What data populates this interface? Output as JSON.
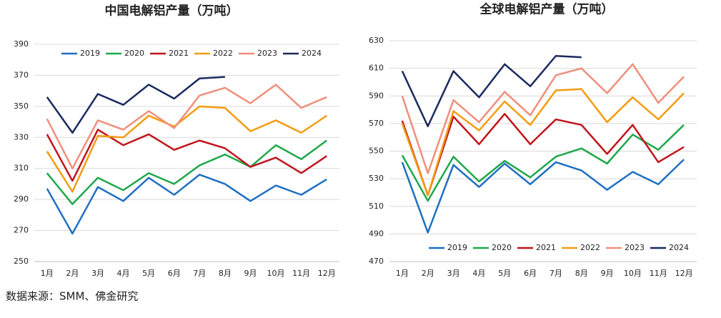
{
  "chart_data": [
    {
      "type": "line",
      "title": "中国电解铝产量（万吨）",
      "categories": [
        "1月",
        "2月",
        "3月",
        "4月",
        "5月",
        "6月",
        "7月",
        "8月",
        "9月",
        "10月",
        "11月",
        "12月"
      ],
      "ylim": [
        250,
        390
      ],
      "yticks": [
        250,
        270,
        290,
        310,
        330,
        350,
        370,
        390
      ],
      "grid": true,
      "legend": "top",
      "series": [
        {
          "name": "2019",
          "color": "#1f6fc1",
          "values": [
            297,
            268,
            298,
            289,
            304,
            293,
            306,
            300,
            289,
            299,
            293,
            303
          ]
        },
        {
          "name": "2020",
          "color": "#1fa84a",
          "values": [
            307,
            287,
            304,
            296,
            307,
            300,
            312,
            319,
            311,
            325,
            316,
            328
          ]
        },
        {
          "name": "2021",
          "color": "#c0141c",
          "values": [
            332,
            302,
            335,
            325,
            332,
            322,
            328,
            323,
            311,
            317,
            307,
            318
          ]
        },
        {
          "name": "2022",
          "color": "#f39c12",
          "values": [
            321,
            295,
            331,
            330,
            344,
            337,
            350,
            349,
            334,
            341,
            333,
            344
          ]
        },
        {
          "name": "2023",
          "color": "#ef8f7b",
          "values": [
            342,
            310,
            341,
            335,
            347,
            336,
            357,
            362,
            352,
            364,
            349,
            356
          ]
        },
        {
          "name": "2024",
          "color": "#1a2a5e",
          "values": [
            356,
            333,
            358,
            351,
            364,
            355,
            368,
            369,
            null,
            null,
            null,
            null
          ]
        }
      ]
    },
    {
      "type": "line",
      "title": "全球电解铝产量（万吨）",
      "categories": [
        "1月",
        "2月",
        "3月",
        "4月",
        "5月",
        "6月",
        "7月",
        "8月",
        "9月",
        "10月",
        "11月",
        "12月"
      ],
      "ylim": [
        470,
        630
      ],
      "yticks": [
        470,
        490,
        510,
        530,
        550,
        570,
        590,
        610,
        630
      ],
      "grid": true,
      "legend": "bottom",
      "series": [
        {
          "name": "2019",
          "color": "#1f6fc1",
          "values": [
            542,
            491,
            540,
            524,
            541,
            526,
            542,
            536,
            522,
            535,
            526,
            544
          ]
        },
        {
          "name": "2020",
          "color": "#1fa84a",
          "values": [
            547,
            514,
            546,
            528,
            543,
            531,
            546,
            552,
            541,
            562,
            551,
            569
          ]
        },
        {
          "name": "2021",
          "color": "#c0141c",
          "values": [
            572,
            518,
            575,
            555,
            577,
            555,
            573,
            569,
            548,
            569,
            542,
            553
          ]
        },
        {
          "name": "2022",
          "color": "#f39c12",
          "values": [
            570,
            518,
            579,
            565,
            586,
            569,
            594,
            595,
            571,
            589,
            573,
            592
          ]
        },
        {
          "name": "2023",
          "color": "#ef8f7b",
          "values": [
            590,
            534,
            587,
            571,
            593,
            576,
            605,
            610,
            592,
            613,
            585,
            604
          ]
        },
        {
          "name": "2024",
          "color": "#1a2a5e",
          "values": [
            608,
            568,
            608,
            589,
            613,
            597,
            619,
            618,
            null,
            null,
            null,
            null
          ]
        }
      ]
    }
  ],
  "source": "数据来源：SMM、佛金研究"
}
